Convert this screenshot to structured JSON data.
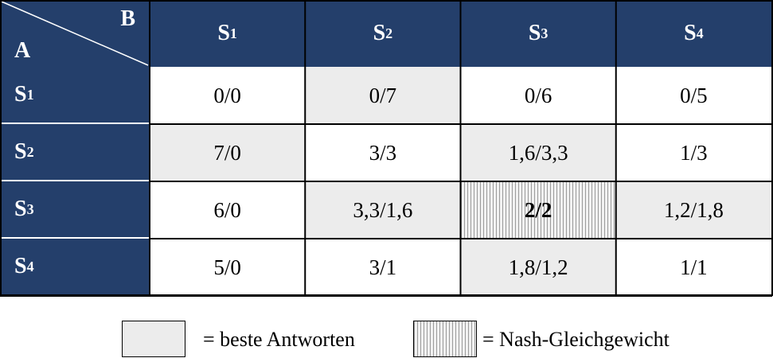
{
  "corner": {
    "column_player": "B",
    "row_player": "A"
  },
  "columns": [
    {
      "base": "S",
      "sub": "1"
    },
    {
      "base": "S",
      "sub": "2"
    },
    {
      "base": "S",
      "sub": "3"
    },
    {
      "base": "S",
      "sub": "4"
    }
  ],
  "rows": [
    {
      "label": {
        "base": "S",
        "sub": "1"
      },
      "cells": [
        {
          "text": "0/0",
          "style": "plain"
        },
        {
          "text": "0/7",
          "style": "best"
        },
        {
          "text": "0/6",
          "style": "plain"
        },
        {
          "text": "0/5",
          "style": "plain"
        }
      ]
    },
    {
      "label": {
        "base": "S",
        "sub": "2"
      },
      "cells": [
        {
          "text": "7/0",
          "style": "best"
        },
        {
          "text": "3/3",
          "style": "plain"
        },
        {
          "text": "1,6/3,3",
          "style": "best"
        },
        {
          "text": "1/3",
          "style": "plain"
        }
      ]
    },
    {
      "label": {
        "base": "S",
        "sub": "3"
      },
      "cells": [
        {
          "text": "6/0",
          "style": "plain"
        },
        {
          "text": "3,3/1,6",
          "style": "best"
        },
        {
          "text": "2/2",
          "style": "nash"
        },
        {
          "text": "1,2/1,8",
          "style": "best"
        }
      ]
    },
    {
      "label": {
        "base": "S",
        "sub": "4"
      },
      "cells": [
        {
          "text": "5/0",
          "style": "plain"
        },
        {
          "text": "3/1",
          "style": "plain"
        },
        {
          "text": "1,8/1,2",
          "style": "best"
        },
        {
          "text": "1/1",
          "style": "plain"
        }
      ]
    }
  ],
  "legend": [
    {
      "style": "best",
      "text": "= beste Antworten"
    },
    {
      "style": "nash",
      "text": "= Nash-Gleichgewicht"
    }
  ]
}
